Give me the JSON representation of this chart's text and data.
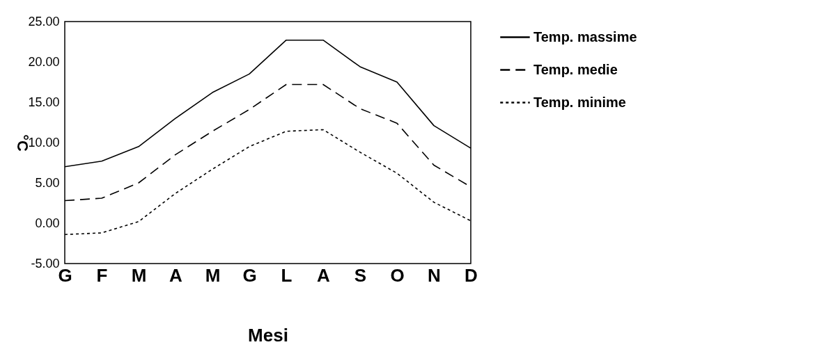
{
  "chart_data": {
    "type": "line",
    "xlabel": "Mesi",
    "ylabel": "°C",
    "categories": [
      "G",
      "F",
      "M",
      "A",
      "M",
      "G",
      "L",
      "A",
      "S",
      "O",
      "N",
      "D"
    ],
    "series": [
      {
        "name": "Temp. massime",
        "color": "#000000",
        "line_style": "solid",
        "values": [
          7.0,
          7.7,
          9.5,
          13.0,
          16.2,
          18.5,
          22.7,
          22.7,
          19.4,
          17.5,
          12.1,
          9.3
        ]
      },
      {
        "name": "Temp. medie",
        "color": "#000000",
        "line_style": "dashed",
        "values": [
          2.8,
          3.1,
          5.0,
          8.5,
          11.4,
          14.1,
          17.2,
          17.2,
          14.2,
          12.4,
          7.2,
          4.5
        ]
      },
      {
        "name": "Temp. minime",
        "color": "#000000",
        "line_style": "dotted",
        "values": [
          -1.4,
          -1.2,
          0.2,
          3.7,
          6.7,
          9.5,
          11.4,
          11.6,
          8.8,
          6.2,
          2.6,
          0.3
        ]
      }
    ],
    "ylim": [
      -5,
      25
    ],
    "yticks": [
      {
        "value": -5,
        "label": "-5.00"
      },
      {
        "value": 0,
        "label": "0.00"
      },
      {
        "value": 5,
        "label": "5.00"
      },
      {
        "value": 10,
        "label": "10.00"
      },
      {
        "value": 15,
        "label": "15.00"
      },
      {
        "value": 20,
        "label": "20.00"
      },
      {
        "value": 25,
        "label": "25.00"
      }
    ],
    "grid": false,
    "legend": "right",
    "marker": "none"
  }
}
